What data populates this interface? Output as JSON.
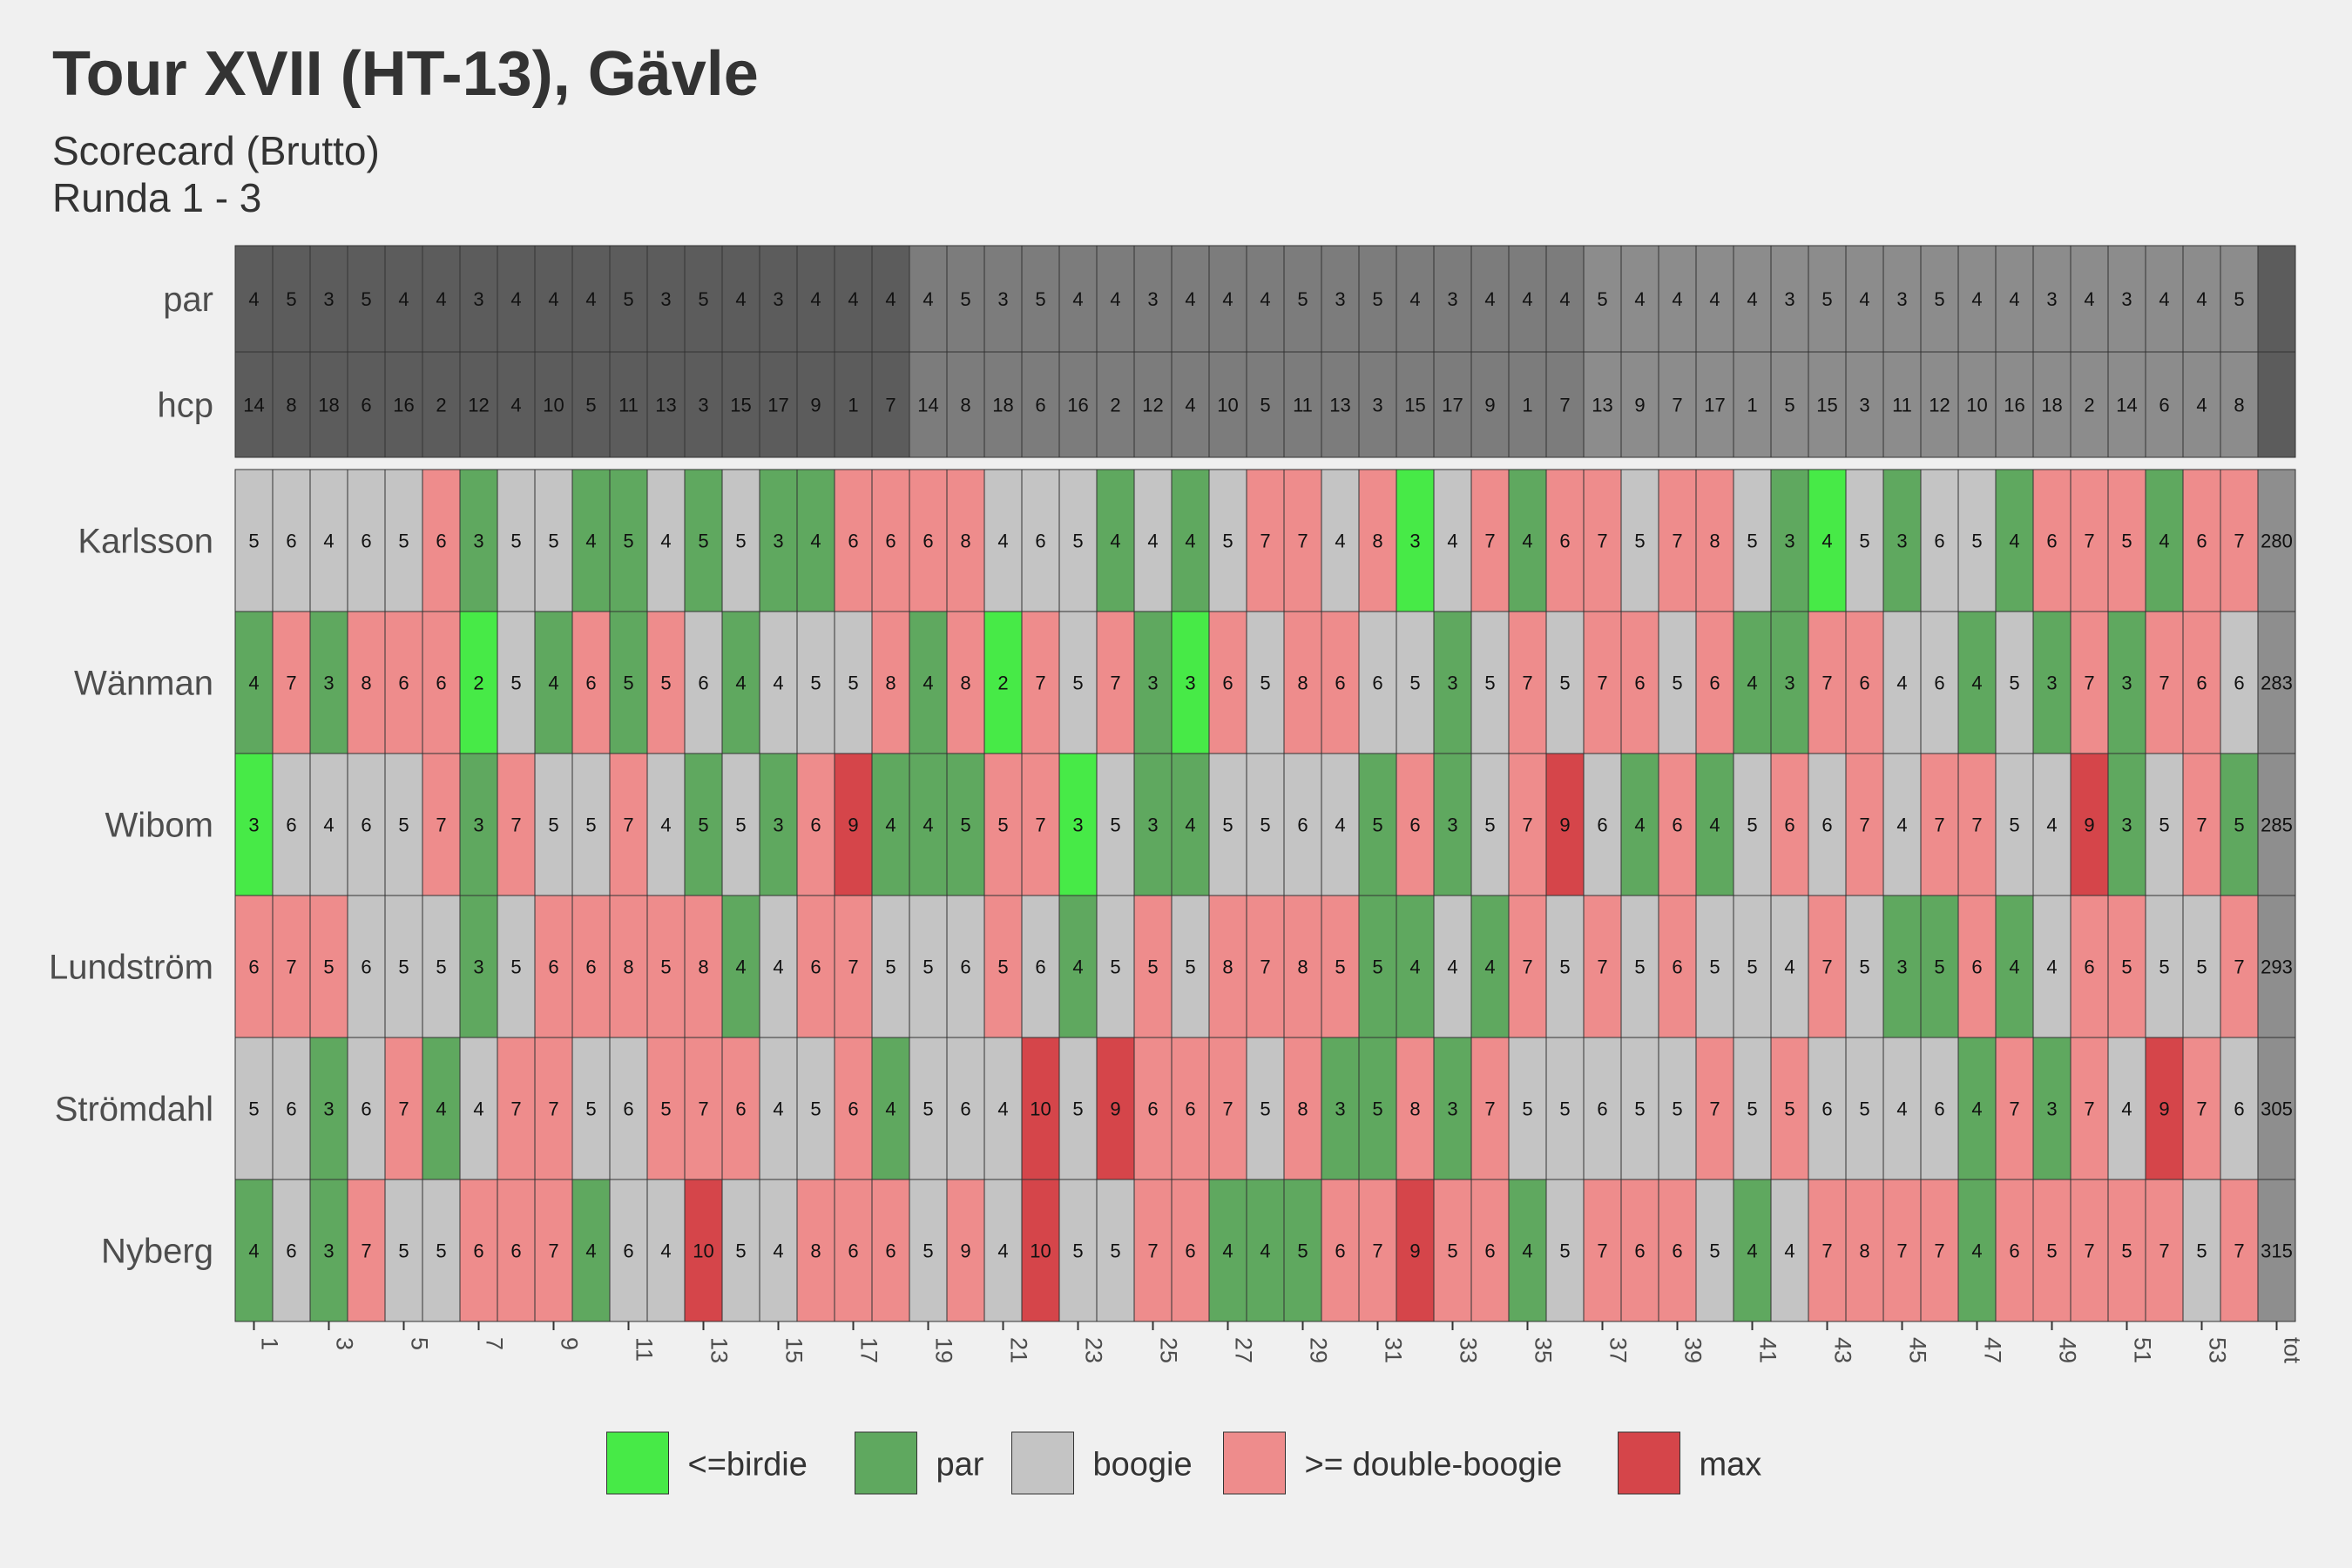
{
  "chart_data": {
    "type": "heatmap",
    "title": "Tour XVII (HT-13), Gävle",
    "subtitle": [
      "Scorecard (Brutto)",
      "Runda 1 - 3"
    ],
    "x_tick_labels": [
      "1",
      "3",
      "5",
      "7",
      "9",
      "11",
      "13",
      "15",
      "17",
      "19",
      "21",
      "23",
      "25",
      "27",
      "29",
      "31",
      "33",
      "35",
      "37",
      "39",
      "41",
      "43",
      "45",
      "47",
      "49",
      "51",
      "53",
      "tot"
    ],
    "holes": 54,
    "par": [
      4,
      5,
      3,
      5,
      4,
      4,
      3,
      4,
      4,
      4,
      5,
      3,
      5,
      4,
      3,
      4,
      4,
      4,
      4,
      5,
      3,
      5,
      4,
      4,
      3,
      4,
      4,
      4,
      5,
      3,
      5,
      4,
      3,
      4,
      4,
      4,
      5,
      4,
      4,
      4,
      4,
      3,
      5,
      4,
      3,
      5,
      4,
      4,
      3,
      4,
      3,
      4,
      4,
      5
    ],
    "hcp": [
      14,
      8,
      18,
      6,
      16,
      2,
      12,
      4,
      10,
      5,
      11,
      13,
      3,
      15,
      17,
      9,
      1,
      7,
      14,
      8,
      18,
      6,
      16,
      2,
      12,
      4,
      10,
      5,
      11,
      13,
      3,
      15,
      17,
      9,
      1,
      7,
      13,
      9,
      7,
      17,
      1,
      5,
      15,
      3,
      11,
      12,
      10,
      16,
      18,
      2,
      14,
      6,
      4,
      8
    ],
    "players": [
      {
        "name": "Karlsson",
        "total": 280,
        "scores": [
          5,
          6,
          4,
          6,
          5,
          6,
          3,
          5,
          5,
          4,
          5,
          4,
          5,
          5,
          3,
          4,
          6,
          6,
          6,
          8,
          4,
          6,
          5,
          4,
          4,
          4,
          5,
          7,
          7,
          4,
          8,
          3,
          4,
          7,
          4,
          6,
          7,
          5,
          7,
          8,
          5,
          3,
          4,
          5,
          3,
          6,
          5,
          4,
          6,
          7,
          5,
          4,
          6,
          7
        ],
        "categories": [
          "boogie",
          "boogie",
          "boogie",
          "boogie",
          "boogie",
          "double",
          "par",
          "boogie",
          "boogie",
          "par",
          "par",
          "boogie",
          "par",
          "boogie",
          "par",
          "par",
          "double",
          "double",
          "double",
          "double",
          "boogie",
          "boogie",
          "boogie",
          "par",
          "boogie",
          "par",
          "boogie",
          "double",
          "double",
          "boogie",
          "double",
          "birdie",
          "boogie",
          "double",
          "par",
          "double",
          "double",
          "boogie",
          "double",
          "double",
          "boogie",
          "par",
          "birdie",
          "boogie",
          "par",
          "boogie",
          "boogie",
          "par",
          "double",
          "double",
          "double",
          "par",
          "double",
          "double"
        ]
      },
      {
        "name": "Wänman",
        "total": 283,
        "scores": [
          4,
          7,
          3,
          8,
          6,
          6,
          2,
          5,
          4,
          6,
          5,
          5,
          6,
          4,
          4,
          5,
          5,
          8,
          4,
          8,
          2,
          7,
          5,
          7,
          3,
          3,
          6,
          5,
          8,
          6,
          6,
          5,
          3,
          5,
          7,
          5,
          7,
          6,
          5,
          6,
          4,
          3,
          7,
          6,
          4,
          6,
          4,
          5,
          3,
          7,
          3,
          7,
          6,
          6
        ],
        "categories": [
          "par",
          "double",
          "par",
          "double",
          "double",
          "double",
          "birdie",
          "boogie",
          "par",
          "double",
          "par",
          "double",
          "boogie",
          "par",
          "boogie",
          "boogie",
          "boogie",
          "double",
          "par",
          "double",
          "birdie",
          "double",
          "boogie",
          "double",
          "par",
          "birdie",
          "double",
          "boogie",
          "double",
          "double",
          "boogie",
          "boogie",
          "par",
          "boogie",
          "double",
          "boogie",
          "double",
          "double",
          "boogie",
          "double",
          "par",
          "par",
          "double",
          "double",
          "boogie",
          "boogie",
          "par",
          "boogie",
          "par",
          "double",
          "par",
          "double",
          "double",
          "boogie"
        ]
      },
      {
        "name": "Wibom",
        "total": 285,
        "scores": [
          3,
          6,
          4,
          6,
          5,
          7,
          3,
          7,
          5,
          5,
          7,
          4,
          5,
          5,
          3,
          6,
          9,
          4,
          4,
          5,
          5,
          7,
          3,
          5,
          3,
          4,
          5,
          5,
          6,
          4,
          5,
          6,
          3,
          5,
          7,
          9,
          6,
          4,
          6,
          4,
          5,
          6,
          6,
          7,
          4,
          7,
          7,
          5,
          4,
          9,
          3,
          5,
          7,
          5
        ],
        "categories": [
          "birdie",
          "boogie",
          "boogie",
          "boogie",
          "boogie",
          "double",
          "par",
          "double",
          "boogie",
          "boogie",
          "double",
          "boogie",
          "par",
          "boogie",
          "par",
          "double",
          "max",
          "par",
          "par",
          "par",
          "double",
          "double",
          "birdie",
          "boogie",
          "par",
          "par",
          "boogie",
          "boogie",
          "boogie",
          "boogie",
          "par",
          "double",
          "par",
          "boogie",
          "double",
          "max",
          "boogie",
          "par",
          "double",
          "par",
          "boogie",
          "double",
          "boogie",
          "double",
          "boogie",
          "double",
          "double",
          "boogie",
          "boogie",
          "max",
          "par",
          "boogie",
          "double",
          "par"
        ]
      },
      {
        "name": "Lundström",
        "total": 293,
        "scores": [
          6,
          7,
          5,
          6,
          5,
          5,
          3,
          5,
          6,
          6,
          8,
          5,
          8,
          4,
          4,
          6,
          7,
          5,
          5,
          6,
          5,
          6,
          4,
          5,
          5,
          5,
          8,
          7,
          8,
          5,
          5,
          4,
          4,
          4,
          7,
          5,
          7,
          5,
          6,
          5,
          5,
          4,
          7,
          5,
          3,
          5,
          6,
          4,
          4,
          6,
          5,
          5,
          5,
          7
        ],
        "categories": [
          "double",
          "double",
          "double",
          "boogie",
          "boogie",
          "boogie",
          "par",
          "boogie",
          "double",
          "double",
          "double",
          "double",
          "double",
          "par",
          "boogie",
          "double",
          "double",
          "boogie",
          "boogie",
          "boogie",
          "double",
          "boogie",
          "par",
          "boogie",
          "double",
          "boogie",
          "double",
          "double",
          "double",
          "double",
          "par",
          "par",
          "boogie",
          "par",
          "double",
          "boogie",
          "double",
          "boogie",
          "double",
          "boogie",
          "boogie",
          "boogie",
          "double",
          "boogie",
          "par",
          "par",
          "double",
          "par",
          "boogie",
          "double",
          "double",
          "boogie",
          "boogie",
          "double"
        ]
      },
      {
        "name": "Strömdahl",
        "total": 305,
        "scores": [
          5,
          6,
          3,
          6,
          7,
          4,
          4,
          7,
          7,
          5,
          6,
          5,
          7,
          6,
          4,
          5,
          6,
          4,
          5,
          6,
          4,
          10,
          5,
          9,
          6,
          6,
          7,
          5,
          8,
          3,
          5,
          8,
          3,
          7,
          5,
          5,
          6,
          5,
          5,
          7,
          5,
          5,
          6,
          5,
          4,
          6,
          4,
          7,
          3,
          7,
          4,
          9,
          7,
          6
        ],
        "categories": [
          "boogie",
          "boogie",
          "par",
          "boogie",
          "double",
          "par",
          "boogie",
          "double",
          "double",
          "boogie",
          "boogie",
          "double",
          "double",
          "double",
          "boogie",
          "boogie",
          "double",
          "par",
          "boogie",
          "boogie",
          "boogie",
          "max",
          "boogie",
          "max",
          "double",
          "double",
          "double",
          "boogie",
          "double",
          "par",
          "par",
          "double",
          "par",
          "double",
          "boogie",
          "boogie",
          "boogie",
          "boogie",
          "boogie",
          "double",
          "boogie",
          "double",
          "boogie",
          "boogie",
          "boogie",
          "boogie",
          "par",
          "double",
          "par",
          "double",
          "boogie",
          "max",
          "double",
          "boogie"
        ]
      },
      {
        "name": "Nyberg",
        "total": 315,
        "scores": [
          4,
          6,
          3,
          7,
          5,
          5,
          6,
          6,
          7,
          4,
          6,
          4,
          10,
          5,
          4,
          8,
          6,
          6,
          5,
          9,
          4,
          10,
          5,
          5,
          7,
          6,
          4,
          4,
          5,
          6,
          7,
          9,
          5,
          6,
          4,
          5,
          7,
          6,
          6,
          5,
          4,
          4,
          7,
          8,
          7,
          7,
          4,
          6,
          5,
          7,
          5,
          7,
          5,
          7
        ],
        "categories": [
          "par",
          "boogie",
          "par",
          "double",
          "boogie",
          "boogie",
          "double",
          "double",
          "double",
          "par",
          "boogie",
          "boogie",
          "max",
          "boogie",
          "boogie",
          "double",
          "double",
          "double",
          "boogie",
          "double",
          "boogie",
          "max",
          "boogie",
          "boogie",
          "double",
          "double",
          "par",
          "par",
          "par",
          "double",
          "double",
          "max",
          "double",
          "double",
          "par",
          "boogie",
          "double",
          "double",
          "double",
          "boogie",
          "par",
          "boogie",
          "double",
          "double",
          "double",
          "double",
          "par",
          "double",
          "double",
          "double",
          "double",
          "double",
          "boogie",
          "double"
        ]
      }
    ],
    "colors": {
      "birdie": "#47ea47",
      "par": "#5fa85f",
      "boogie": "#c4c4c4",
      "double": "#ee8c8c",
      "max": "#d5454a",
      "header_front": "#5c5c5c",
      "header_back": "#7c7c7c",
      "header_back2": "#8c8c8c",
      "total_col": "#8e8e8e",
      "total_header": "#5c5c5c"
    },
    "legend": {
      "placement": "bottom",
      "items": [
        {
          "key": "birdie",
          "label": "<=birdie"
        },
        {
          "key": "par",
          "label": "par"
        },
        {
          "key": "boogie",
          "label": "boogie"
        },
        {
          "key": "double",
          "label": ">= double-boogie"
        },
        {
          "key": "max",
          "label": "max"
        }
      ]
    },
    "row_labels": {
      "par": "par",
      "hcp": "hcp"
    }
  }
}
